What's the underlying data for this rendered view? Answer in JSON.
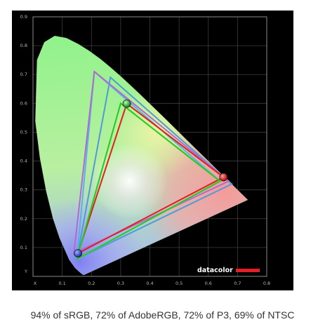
{
  "chart_data": {
    "type": "scatter",
    "chart_kind": "cie-1931-xy-chromaticity-gamut",
    "xlabel": "X",
    "ylabel": "Y",
    "xlim": [
      0,
      0.8
    ],
    "ylim": [
      0,
      0.9
    ],
    "x_ticks": [
      "0.1",
      "0.2",
      "0.3",
      "0.4",
      "0.5",
      "0.6",
      "0.7",
      "0.8"
    ],
    "y_ticks": [
      "0.1",
      "0.2",
      "0.3",
      "0.4",
      "0.5",
      "0.6",
      "0.7",
      "0.8",
      "0.9"
    ],
    "grid": true,
    "background": "#000000",
    "locus": [
      [
        0.1741,
        0.005
      ],
      [
        0.1738,
        0.0049
      ],
      [
        0.1666,
        0.0089
      ],
      [
        0.1566,
        0.0177
      ],
      [
        0.144,
        0.0297
      ],
      [
        0.1241,
        0.0578
      ],
      [
        0.0913,
        0.1327
      ],
      [
        0.0687,
        0.2007
      ],
      [
        0.0454,
        0.295
      ],
      [
        0.0235,
        0.4127
      ],
      [
        0.0082,
        0.5384
      ],
      [
        0.0139,
        0.7502
      ],
      [
        0.0389,
        0.812
      ],
      [
        0.0743,
        0.8338
      ],
      [
        0.1142,
        0.8262
      ],
      [
        0.1547,
        0.8059
      ],
      [
        0.1929,
        0.7816
      ],
      [
        0.2296,
        0.7543
      ],
      [
        0.2658,
        0.7243
      ],
      [
        0.3016,
        0.6923
      ],
      [
        0.3373,
        0.6589
      ],
      [
        0.3731,
        0.6245
      ],
      [
        0.4087,
        0.5896
      ],
      [
        0.4441,
        0.5547
      ],
      [
        0.4788,
        0.5202
      ],
      [
        0.5125,
        0.4866
      ],
      [
        0.5448,
        0.4544
      ],
      [
        0.5752,
        0.4242
      ],
      [
        0.6029,
        0.3965
      ],
      [
        0.627,
        0.3725
      ],
      [
        0.6482,
        0.3514
      ],
      [
        0.6658,
        0.334
      ],
      [
        0.6801,
        0.3197
      ],
      [
        0.6915,
        0.3083
      ],
      [
        0.7006,
        0.2993
      ],
      [
        0.7079,
        0.292
      ],
      [
        0.714,
        0.2859
      ],
      [
        0.7347,
        0.2653
      ]
    ],
    "series": [
      {
        "color": "#4f9bd8",
        "points": [
          [
            0.68,
            0.32
          ],
          [
            0.265,
            0.69
          ],
          [
            0.15,
            0.06
          ]
        ]
      },
      {
        "color": "#5ab0e8",
        "points": [
          [
            0.64,
            0.33
          ],
          [
            0.21,
            0.71
          ],
          [
            0.15,
            0.06
          ]
        ]
      },
      {
        "color": "#b469d0",
        "points": [
          [
            0.67,
            0.33
          ],
          [
            0.21,
            0.71
          ],
          [
            0.14,
            0.08
          ]
        ]
      },
      {
        "color": "#e8889a",
        "points": [
          [
            0.64,
            0.33
          ],
          [
            0.3,
            0.6
          ],
          [
            0.15,
            0.06
          ]
        ]
      },
      {
        "color": "#e02020",
        "points": [
          [
            0.652,
            0.344
          ],
          [
            0.321,
            0.599
          ],
          [
            0.154,
            0.08
          ]
        ]
      },
      {
        "color": "#20d020",
        "points": [
          [
            0.64,
            0.33
          ],
          [
            0.3,
            0.6
          ],
          [
            0.15,
            0.06
          ]
        ]
      }
    ],
    "primaries": [
      {
        "x": 0.652,
        "y": 0.344,
        "color": "#e81a1a"
      },
      {
        "x": 0.321,
        "y": 0.599,
        "color": "#1a9a1a"
      },
      {
        "x": 0.154,
        "y": 0.08,
        "color": "#2040e8"
      }
    ]
  },
  "brand": {
    "name": "datacolor",
    "bar_color": "#e21f26"
  },
  "caption": "94% of sRGB, 72% of AdobeRGB, 72% of P3, 69% of NTSC"
}
